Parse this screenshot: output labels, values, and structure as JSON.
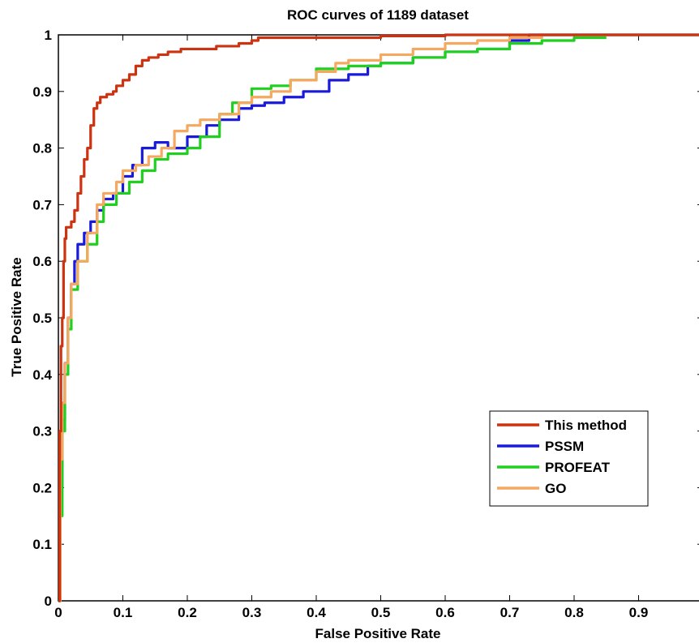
{
  "chart_data": {
    "type": "line",
    "title": "ROC curves of 1189 dataset",
    "xlabel": "False Positive Rate",
    "ylabel": "True Positive Rate",
    "xlim": [
      0,
      1
    ],
    "ylim": [
      0,
      1
    ],
    "xticks": [
      "0",
      "0.1",
      "0.2",
      "0.3",
      "0.4",
      "0.5",
      "0.6",
      "0.7",
      "0.8",
      "0.9",
      "1"
    ],
    "yticks": [
      "0",
      "0.1",
      "0.2",
      "0.3",
      "0.4",
      "0.5",
      "0.6",
      "0.7",
      "0.8",
      "0.9",
      "1"
    ],
    "grid": false,
    "legend_position": "lower-right",
    "series": [
      {
        "name": "This method",
        "color": "#cc3311",
        "points": [
          [
            0,
            0
          ],
          [
            0.002,
            0.3
          ],
          [
            0.004,
            0.45
          ],
          [
            0.006,
            0.5
          ],
          [
            0.008,
            0.6
          ],
          [
            0.01,
            0.64
          ],
          [
            0.012,
            0.66
          ],
          [
            0.02,
            0.67
          ],
          [
            0.025,
            0.69
          ],
          [
            0.03,
            0.72
          ],
          [
            0.035,
            0.75
          ],
          [
            0.04,
            0.78
          ],
          [
            0.045,
            0.8
          ],
          [
            0.05,
            0.84
          ],
          [
            0.055,
            0.87
          ],
          [
            0.06,
            0.88
          ],
          [
            0.065,
            0.89
          ],
          [
            0.075,
            0.895
          ],
          [
            0.085,
            0.9
          ],
          [
            0.09,
            0.91
          ],
          [
            0.1,
            0.92
          ],
          [
            0.11,
            0.93
          ],
          [
            0.12,
            0.945
          ],
          [
            0.13,
            0.955
          ],
          [
            0.14,
            0.96
          ],
          [
            0.155,
            0.965
          ],
          [
            0.17,
            0.97
          ],
          [
            0.19,
            0.975
          ],
          [
            0.245,
            0.98
          ],
          [
            0.28,
            0.985
          ],
          [
            0.3,
            0.99
          ],
          [
            0.31,
            0.995
          ],
          [
            0.5,
            0.998
          ],
          [
            0.6,
            1
          ],
          [
            1,
            1
          ]
        ]
      },
      {
        "name": "PSSM",
        "color": "#1a1adb",
        "points": [
          [
            0,
            0
          ],
          [
            0.003,
            0.2
          ],
          [
            0.006,
            0.32
          ],
          [
            0.01,
            0.42
          ],
          [
            0.015,
            0.5
          ],
          [
            0.02,
            0.56
          ],
          [
            0.025,
            0.6
          ],
          [
            0.03,
            0.63
          ],
          [
            0.04,
            0.65
          ],
          [
            0.05,
            0.67
          ],
          [
            0.06,
            0.69
          ],
          [
            0.07,
            0.71
          ],
          [
            0.085,
            0.72
          ],
          [
            0.1,
            0.75
          ],
          [
            0.115,
            0.77
          ],
          [
            0.13,
            0.8
          ],
          [
            0.15,
            0.81
          ],
          [
            0.17,
            0.8
          ],
          [
            0.2,
            0.82
          ],
          [
            0.23,
            0.84
          ],
          [
            0.25,
            0.85
          ],
          [
            0.28,
            0.87
          ],
          [
            0.3,
            0.875
          ],
          [
            0.32,
            0.88
          ],
          [
            0.35,
            0.89
          ],
          [
            0.38,
            0.9
          ],
          [
            0.42,
            0.92
          ],
          [
            0.45,
            0.93
          ],
          [
            0.48,
            0.945
          ],
          [
            0.5,
            0.95
          ],
          [
            0.55,
            0.96
          ],
          [
            0.6,
            0.97
          ],
          [
            0.65,
            0.975
          ],
          [
            0.7,
            0.99
          ],
          [
            0.73,
            1
          ],
          [
            1,
            1
          ]
        ]
      },
      {
        "name": "PROFEAT",
        "color": "#1fd01f",
        "points": [
          [
            0,
            0
          ],
          [
            0.003,
            0.15
          ],
          [
            0.006,
            0.3
          ],
          [
            0.01,
            0.4
          ],
          [
            0.015,
            0.48
          ],
          [
            0.02,
            0.55
          ],
          [
            0.03,
            0.6
          ],
          [
            0.045,
            0.63
          ],
          [
            0.06,
            0.67
          ],
          [
            0.07,
            0.7
          ],
          [
            0.09,
            0.72
          ],
          [
            0.11,
            0.74
          ],
          [
            0.13,
            0.76
          ],
          [
            0.15,
            0.78
          ],
          [
            0.17,
            0.79
          ],
          [
            0.2,
            0.8
          ],
          [
            0.22,
            0.82
          ],
          [
            0.25,
            0.86
          ],
          [
            0.27,
            0.88
          ],
          [
            0.3,
            0.905
          ],
          [
            0.33,
            0.91
          ],
          [
            0.36,
            0.92
          ],
          [
            0.4,
            0.94
          ],
          [
            0.45,
            0.945
          ],
          [
            0.5,
            0.95
          ],
          [
            0.55,
            0.96
          ],
          [
            0.6,
            0.97
          ],
          [
            0.65,
            0.975
          ],
          [
            0.7,
            0.985
          ],
          [
            0.75,
            0.99
          ],
          [
            0.8,
            0.995
          ],
          [
            0.85,
            0.995
          ]
        ]
      },
      {
        "name": "GO",
        "color": "#f5a860",
        "points": [
          [
            0,
            0
          ],
          [
            0.003,
            0.25
          ],
          [
            0.006,
            0.35
          ],
          [
            0.01,
            0.42
          ],
          [
            0.015,
            0.5
          ],
          [
            0.02,
            0.56
          ],
          [
            0.03,
            0.6
          ],
          [
            0.045,
            0.65
          ],
          [
            0.06,
            0.7
          ],
          [
            0.07,
            0.72
          ],
          [
            0.09,
            0.74
          ],
          [
            0.1,
            0.76
          ],
          [
            0.12,
            0.77
          ],
          [
            0.14,
            0.785
          ],
          [
            0.16,
            0.8
          ],
          [
            0.18,
            0.83
          ],
          [
            0.2,
            0.84
          ],
          [
            0.22,
            0.85
          ],
          [
            0.25,
            0.86
          ],
          [
            0.28,
            0.88
          ],
          [
            0.3,
            0.89
          ],
          [
            0.33,
            0.9
          ],
          [
            0.36,
            0.92
          ],
          [
            0.4,
            0.935
          ],
          [
            0.43,
            0.95
          ],
          [
            0.45,
            0.955
          ],
          [
            0.5,
            0.965
          ],
          [
            0.55,
            0.975
          ],
          [
            0.6,
            0.985
          ],
          [
            0.65,
            0.99
          ],
          [
            0.7,
            0.995
          ],
          [
            0.75,
            1
          ],
          [
            1,
            1
          ]
        ]
      }
    ]
  }
}
